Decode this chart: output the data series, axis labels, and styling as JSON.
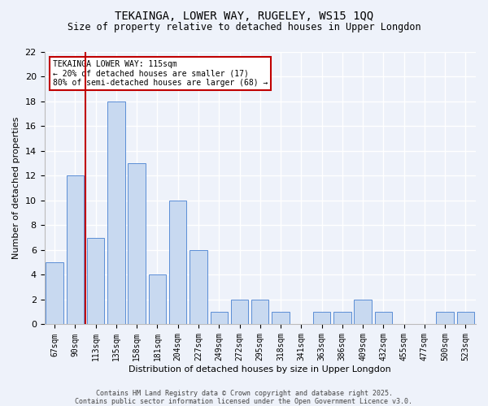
{
  "title1": "TEKAINGA, LOWER WAY, RUGELEY, WS15 1QQ",
  "title2": "Size of property relative to detached houses in Upper Longdon",
  "xlabel": "Distribution of detached houses by size in Upper Longdon",
  "ylabel": "Number of detached properties",
  "categories": [
    "67sqm",
    "90sqm",
    "113sqm",
    "135sqm",
    "158sqm",
    "181sqm",
    "204sqm",
    "227sqm",
    "249sqm",
    "272sqm",
    "295sqm",
    "318sqm",
    "341sqm",
    "363sqm",
    "386sqm",
    "409sqm",
    "432sqm",
    "455sqm",
    "477sqm",
    "500sqm",
    "523sqm"
  ],
  "values": [
    5,
    12,
    7,
    18,
    13,
    4,
    10,
    6,
    1,
    2,
    2,
    1,
    0,
    1,
    1,
    2,
    1,
    0,
    0,
    1,
    1
  ],
  "bar_color": "#c8d9f0",
  "bar_edge_color": "#5b8ed6",
  "ylim": [
    0,
    22
  ],
  "yticks": [
    0,
    2,
    4,
    6,
    8,
    10,
    12,
    14,
    16,
    18,
    20,
    22
  ],
  "vline_color": "#c00000",
  "vline_pos": 1.5,
  "annotation_text": "TEKAINGA LOWER WAY: 115sqm\n← 20% of detached houses are smaller (17)\n80% of semi-detached houses are larger (68) →",
  "annotation_box_color": "#c00000",
  "footnote": "Contains HM Land Registry data © Crown copyright and database right 2025.\nContains public sector information licensed under the Open Government Licence v3.0.",
  "background_color": "#eef2fa",
  "grid_color": "#ffffff"
}
